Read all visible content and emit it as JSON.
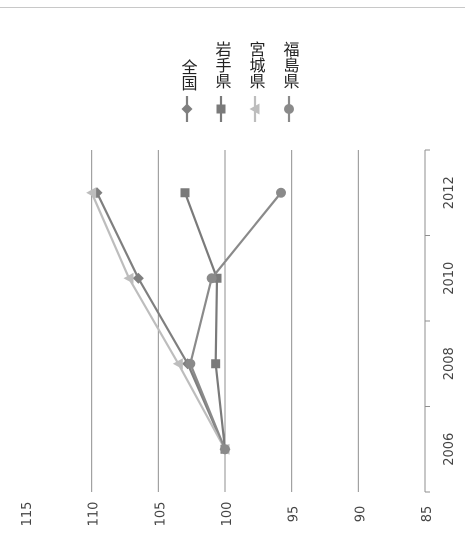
{
  "chart_data": {
    "type": "line",
    "orientation": "rotated-90-clockwise",
    "title": "",
    "xlabel": "",
    "ylabel": "",
    "x": [
      2006,
      2008,
      2010,
      2012
    ],
    "x_ticks": [
      "2006",
      "2008",
      "2010",
      "2012"
    ],
    "xlim": [
      2005,
      2013
    ],
    "ylim": [
      85,
      115
    ],
    "y_ticks": [
      "85",
      "90",
      "95",
      "100",
      "105",
      "110",
      "115"
    ],
    "grid": true,
    "legend_position": "top-right",
    "series": [
      {
        "name": "全国",
        "values": [
          100,
          102.8,
          106.5,
          109.6
        ],
        "color": "#7f7f7f",
        "marker": "diamond"
      },
      {
        "name": "岩手県",
        "values": [
          100,
          100.7,
          100.6,
          103.0
        ],
        "color": "#7a7a7a",
        "marker": "square"
      },
      {
        "name": "宮城県",
        "values": [
          100,
          103.5,
          107.2,
          110.0
        ],
        "color": "#bdbdbd",
        "marker": "triangle"
      },
      {
        "name": "福島県",
        "values": [
          100,
          102.6,
          101.0,
          95.8
        ],
        "color": "#8a8a8a",
        "marker": "circle"
      }
    ]
  }
}
